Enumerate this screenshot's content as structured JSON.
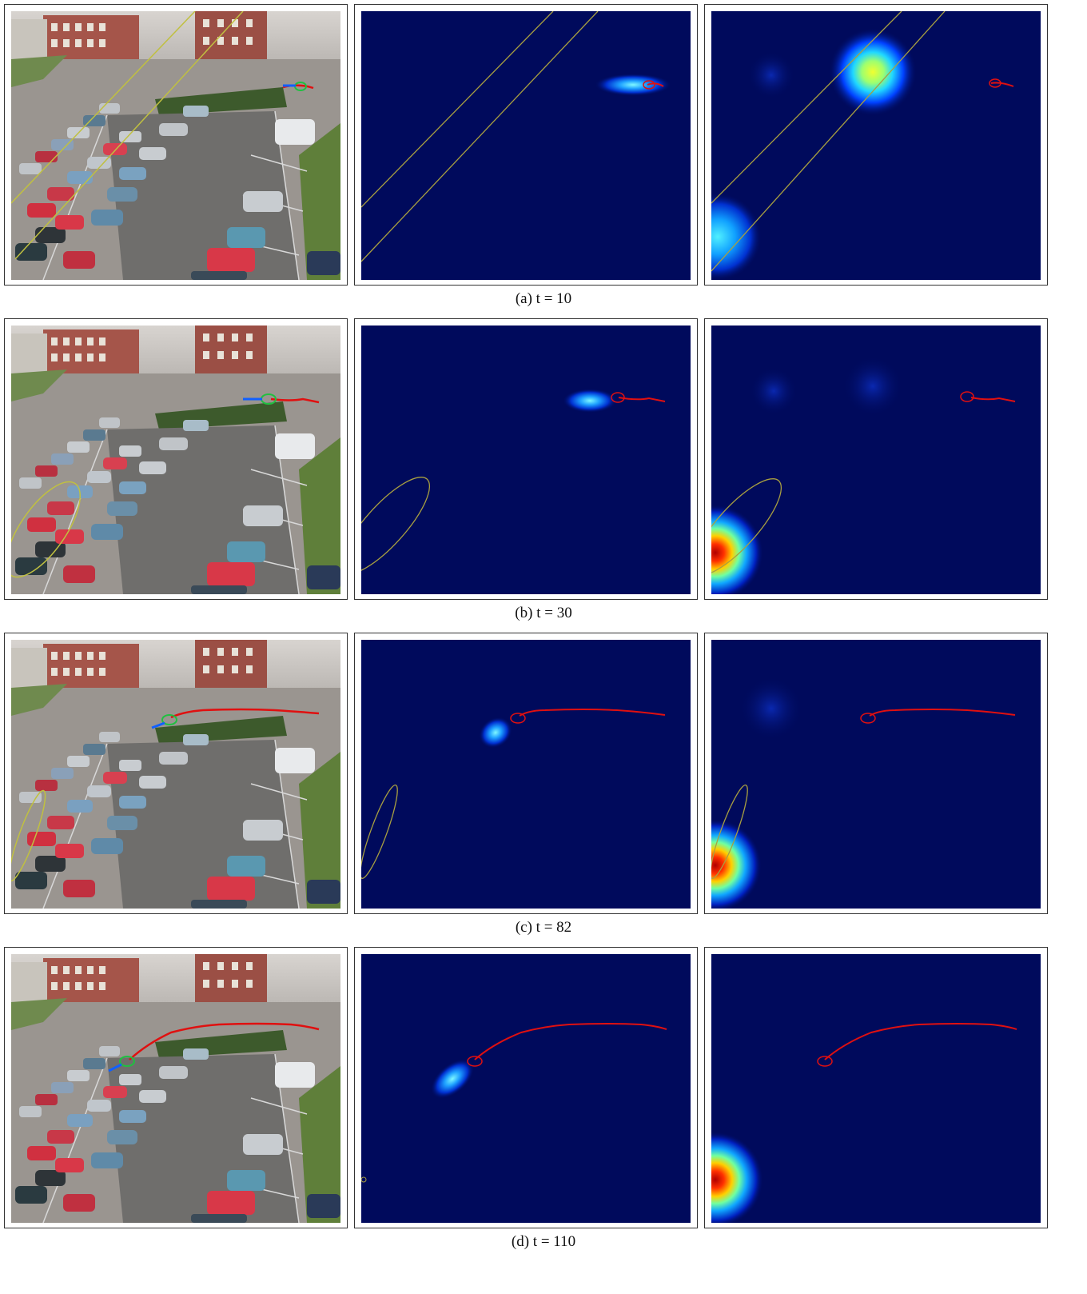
{
  "captions": [
    "(a)  t = 10",
    "(b)  t = 30",
    "(c)  t = 82",
    "(d)  t = 110"
  ],
  "colors": {
    "heatmap_bg": "#000a5c",
    "track": "#e01010",
    "ellipse": "#a8a040",
    "frame_border": "#333333"
  },
  "rows": [
    {
      "time": 10
    },
    {
      "time": 30
    },
    {
      "time": 82
    },
    {
      "time": 110
    }
  ]
}
